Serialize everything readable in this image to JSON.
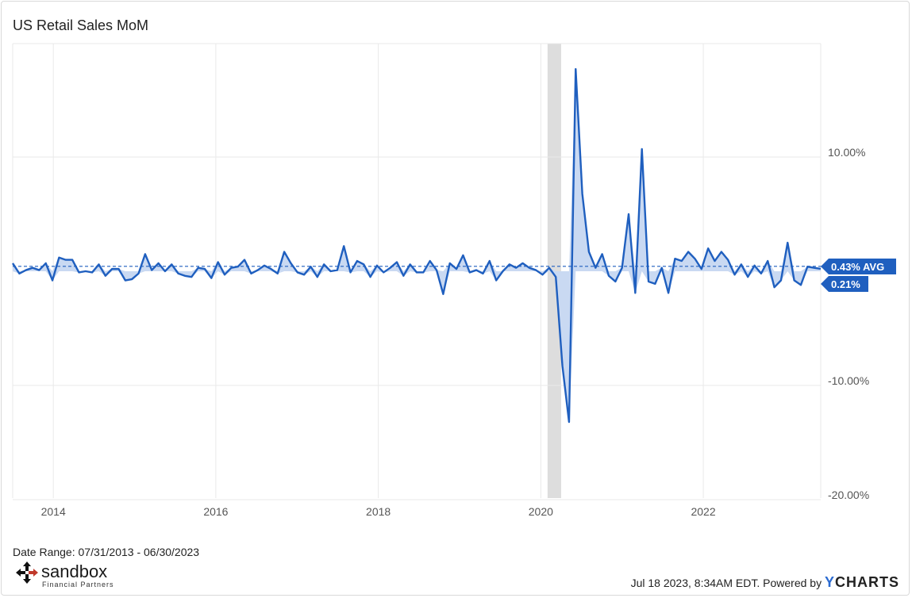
{
  "title": "US Retail Sales MoM",
  "date_range": "Date Range: 07/31/2013 - 06/30/2023",
  "footer": {
    "timestamp": "Jul 18 2023, 8:34AM EDT.",
    "powered_by": "Powered by",
    "brand_y": "Y",
    "brand_rest": "CHARTS"
  },
  "logo": {
    "name": "sandbox",
    "tagline": "Financial Partners"
  },
  "colors": {
    "line": "#1f5fbf",
    "fill": "#c9d9f2",
    "recession": "#dddddd",
    "grid": "#e9e9e9",
    "label_bg": "#1f5fbf"
  },
  "chart_data": {
    "type": "area",
    "title": "US Retail Sales MoM",
    "xlabel": "",
    "ylabel": "",
    "x_start": "2013-07",
    "x_end": "2023-06",
    "xticks": [
      "2014",
      "2016",
      "2018",
      "2020",
      "2022"
    ],
    "yticks": [
      "10.00%",
      "-10.00%",
      "-20.00%"
    ],
    "ylim": [
      -20,
      20
    ],
    "grid": true,
    "recession_band": [
      "2020-02",
      "2020-04"
    ],
    "avg_label": "0.43% AVG",
    "last_label": "0.21%",
    "average": 0.43,
    "last_value": 0.21,
    "series": [
      {
        "values": [
          0.7,
          -0.2,
          0.1,
          0.3,
          0.1,
          0.7,
          -0.8,
          1.2,
          1.0,
          1.0,
          -0.1,
          0.0,
          -0.1,
          0.6,
          -0.4,
          0.2,
          0.2,
          -0.8,
          -0.7,
          -0.2,
          1.5,
          0.1,
          0.7,
          0.0,
          0.6,
          -0.2,
          -0.4,
          -0.5,
          0.3,
          0.2,
          -0.6,
          0.8,
          -0.3,
          0.3,
          0.4,
          1.0,
          -0.2,
          0.1,
          0.5,
          0.2,
          -0.2,
          1.7,
          0.7,
          -0.1,
          -0.3,
          0.4,
          -0.5,
          0.6,
          0.0,
          0.1,
          2.2,
          -0.1,
          0.9,
          0.6,
          -0.5,
          0.5,
          -0.1,
          0.3,
          0.8,
          -0.4,
          0.6,
          -0.1,
          -0.1,
          0.9,
          0.1,
          -2.0,
          0.7,
          0.2,
          1.4,
          -0.1,
          0.1,
          -0.2,
          0.9,
          -0.8,
          0.0,
          0.6,
          0.3,
          0.7,
          0.3,
          0.1,
          -0.3,
          0.3,
          -0.5,
          -8.3,
          -13.2,
          17.7,
          6.8,
          1.7,
          0.3,
          1.5,
          -0.4,
          -0.9,
          0.3,
          5.0,
          -1.9,
          10.7,
          -0.9,
          -1.1,
          0.3,
          -1.9,
          1.1,
          0.9,
          1.7,
          1.1,
          0.2,
          2.0,
          0.9,
          1.7,
          1.0,
          -0.3,
          0.6,
          -0.5,
          0.5,
          -0.2,
          0.9,
          -1.4,
          -0.8,
          2.5,
          -0.8,
          -1.2,
          0.4,
          0.3,
          0.21
        ]
      }
    ]
  }
}
